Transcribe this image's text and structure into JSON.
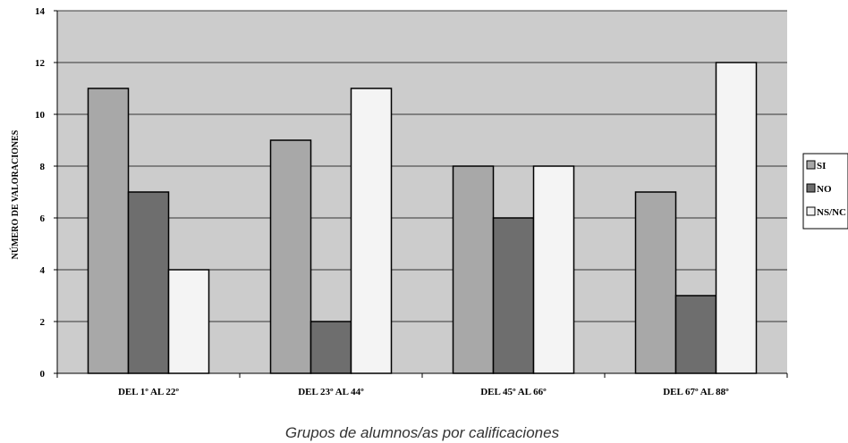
{
  "chart_data": {
    "type": "bar",
    "title": "",
    "xlabel": "Grupos de alumnos/as por calificaciones",
    "ylabel": "NÚMERO DE VALORACIONES",
    "ylim": [
      0,
      14
    ],
    "yticks": [
      "0",
      "2",
      "4",
      "6",
      "8",
      "10",
      "12",
      "14"
    ],
    "grid": true,
    "legend_position": "right",
    "categories": [
      "DEL 1º AL 22º",
      "DEL 23º AL 44º",
      "DEL 45º AL 66º",
      "DEL 67º AL 88º"
    ],
    "series": [
      {
        "name": "SI",
        "color": "#a8a8a8",
        "values": [
          11,
          9,
          8,
          7
        ]
      },
      {
        "name": "NO",
        "color": "#6e6e6e",
        "values": [
          7,
          2,
          6,
          3
        ]
      },
      {
        "name": "NS/NC",
        "color": "#f4f4f4",
        "values": [
          4,
          11,
          8,
          12
        ]
      }
    ],
    "plot_background": "#cccccc"
  }
}
